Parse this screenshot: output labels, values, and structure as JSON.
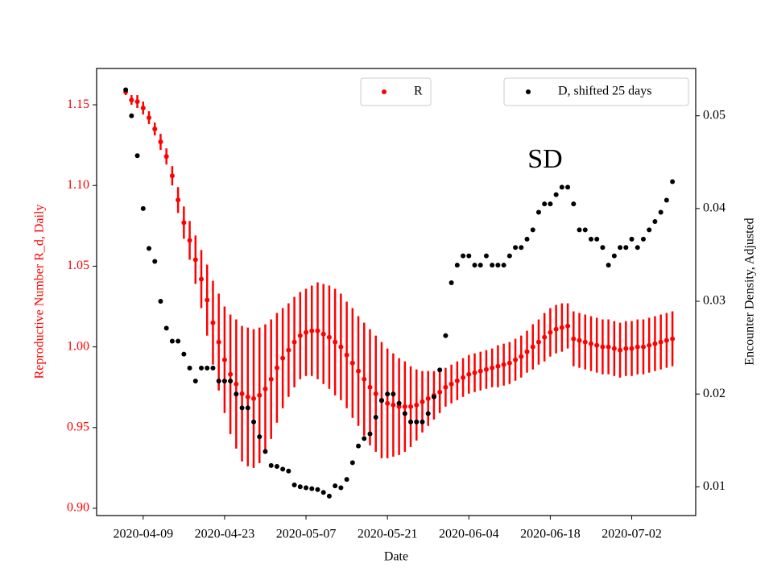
{
  "chart_data": {
    "type": "scatter",
    "xlabel": "Date",
    "ylabel": "Reproductive Number R_d, Daily",
    "y2label": "Encounter Density, Adjusted",
    "annotation": "SD",
    "x": [
      "2020-04-06",
      "2020-04-07",
      "2020-04-08",
      "2020-04-09",
      "2020-04-10",
      "2020-04-11",
      "2020-04-12",
      "2020-04-13",
      "2020-04-14",
      "2020-04-15",
      "2020-04-16",
      "2020-04-17",
      "2020-04-18",
      "2020-04-19",
      "2020-04-20",
      "2020-04-21",
      "2020-04-22",
      "2020-04-23",
      "2020-04-24",
      "2020-04-25",
      "2020-04-26",
      "2020-04-27",
      "2020-04-28",
      "2020-04-29",
      "2020-04-30",
      "2020-05-01",
      "2020-05-02",
      "2020-05-03",
      "2020-05-04",
      "2020-05-05",
      "2020-05-06",
      "2020-05-07",
      "2020-05-08",
      "2020-05-09",
      "2020-05-10",
      "2020-05-11",
      "2020-05-12",
      "2020-05-13",
      "2020-05-14",
      "2020-05-15",
      "2020-05-16",
      "2020-05-17",
      "2020-05-18",
      "2020-05-19",
      "2020-05-20",
      "2020-05-21",
      "2020-05-22",
      "2020-05-23",
      "2020-05-24",
      "2020-05-25",
      "2020-05-26",
      "2020-05-27",
      "2020-05-28",
      "2020-05-29",
      "2020-05-30",
      "2020-05-31",
      "2020-06-01",
      "2020-06-02",
      "2020-06-03",
      "2020-06-04",
      "2020-06-05",
      "2020-06-06",
      "2020-06-07",
      "2020-06-08",
      "2020-06-09",
      "2020-06-10",
      "2020-06-11",
      "2020-06-12",
      "2020-06-13",
      "2020-06-14",
      "2020-06-15",
      "2020-06-16",
      "2020-06-17",
      "2020-06-18",
      "2020-06-19",
      "2020-06-20",
      "2020-06-21",
      "2020-06-22",
      "2020-06-23",
      "2020-06-24",
      "2020-06-25",
      "2020-06-26",
      "2020-06-27",
      "2020-06-28",
      "2020-06-29",
      "2020-06-30",
      "2020-07-01",
      "2020-07-02",
      "2020-07-03",
      "2020-07-04",
      "2020-07-05",
      "2020-07-06",
      "2020-07-07",
      "2020-07-08",
      "2020-07-09"
    ],
    "series": [
      {
        "name": "R",
        "color": "#ff0000",
        "axis": "y",
        "values": [
          1.158,
          1.153,
          1.152,
          1.148,
          1.142,
          1.135,
          1.127,
          1.118,
          1.106,
          1.091,
          1.077,
          1.066,
          1.054,
          1.042,
          1.029,
          1.015,
          1.003,
          0.992,
          0.983,
          0.977,
          0.971,
          0.969,
          0.968,
          0.97,
          0.974,
          0.98,
          0.987,
          0.993,
          0.998,
          1.003,
          1.007,
          1.009,
          1.01,
          1.01,
          1.008,
          1.006,
          1.003,
          1.0,
          0.995,
          0.99,
          0.985,
          0.98,
          0.975,
          0.971,
          0.967,
          0.965,
          0.964,
          0.963,
          0.963,
          0.963,
          0.964,
          0.966,
          0.968,
          0.97,
          0.972,
          0.975,
          0.977,
          0.979,
          0.981,
          0.983,
          0.984,
          0.985,
          0.986,
          0.987,
          0.988,
          0.989,
          0.99,
          0.992,
          0.994,
          0.997,
          1.0,
          1.003,
          1.006,
          1.009,
          1.011,
          1.012,
          1.013,
          1.005,
          1.004,
          1.003,
          1.002,
          1.001,
          1.0,
          1.0,
          0.999,
          0.998,
          0.999,
          0.999,
          1.0,
          1.0,
          1.001,
          1.002,
          1.003,
          1.004,
          1.005
        ],
        "errors": [
          0.002,
          0.003,
          0.004,
          0.004,
          0.004,
          0.004,
          0.005,
          0.005,
          0.006,
          0.008,
          0.01,
          0.012,
          0.015,
          0.018,
          0.022,
          0.026,
          0.03,
          0.033,
          0.037,
          0.04,
          0.042,
          0.043,
          0.043,
          0.042,
          0.04,
          0.037,
          0.034,
          0.031,
          0.029,
          0.028,
          0.027,
          0.027,
          0.028,
          0.03,
          0.031,
          0.032,
          0.033,
          0.033,
          0.033,
          0.034,
          0.034,
          0.035,
          0.036,
          0.036,
          0.036,
          0.034,
          0.032,
          0.03,
          0.028,
          0.025,
          0.022,
          0.019,
          0.017,
          0.015,
          0.013,
          0.012,
          0.012,
          0.012,
          0.012,
          0.012,
          0.012,
          0.012,
          0.012,
          0.012,
          0.013,
          0.013,
          0.013,
          0.013,
          0.013,
          0.013,
          0.014,
          0.014,
          0.015,
          0.015,
          0.015,
          0.015,
          0.014,
          0.017,
          0.017,
          0.017,
          0.017,
          0.017,
          0.017,
          0.017,
          0.017,
          0.017,
          0.017,
          0.017,
          0.017,
          0.017,
          0.017,
          0.017,
          0.017,
          0.017,
          0.017
        ]
      },
      {
        "name": "D, shifted 25 days",
        "color": "#000000",
        "axis": "y2",
        "values": [
          0.0528,
          0.05,
          0.0457,
          0.04,
          0.0357,
          0.0343,
          0.03,
          0.0271,
          0.0257,
          0.0257,
          0.0243,
          0.0228,
          0.0214,
          0.0228,
          0.0228,
          0.0228,
          0.0214,
          0.0214,
          0.0214,
          0.02,
          0.0185,
          0.0185,
          0.017,
          0.0154,
          0.0138,
          0.0123,
          0.0122,
          0.0119,
          0.0117,
          0.0102,
          0.01,
          0.0099,
          0.0098,
          0.0097,
          0.0094,
          0.009,
          0.0101,
          0.0099,
          0.0108,
          0.0126,
          0.0144,
          0.0152,
          0.0157,
          0.0175,
          0.0193,
          0.02,
          0.02,
          0.019,
          0.0179,
          0.017,
          0.017,
          0.017,
          0.0179,
          0.0197,
          0.0226,
          0.0263,
          0.032,
          0.0339,
          0.0349,
          0.0349,
          0.0339,
          0.0339,
          0.0349,
          0.0339,
          0.0339,
          0.0339,
          0.0349,
          0.0358,
          0.0358,
          0.0367,
          0.0377,
          0.0396,
          0.0405,
          0.0405,
          0.0415,
          0.0423,
          0.0423,
          0.0405,
          0.0377,
          0.0377,
          0.0367,
          0.0367,
          0.0358,
          0.0339,
          0.0349,
          0.0358,
          0.0358,
          0.0367,
          0.0358,
          0.0367,
          0.0377,
          0.0386,
          0.0396,
          0.0409,
          0.0429
        ]
      }
    ],
    "xlim": [
      "2020-04-01",
      "2020-07-13"
    ],
    "xticks": [
      "2020-04-09",
      "2020-04-23",
      "2020-05-07",
      "2020-05-21",
      "2020-06-04",
      "2020-06-18",
      "2020-07-02"
    ],
    "ylim": [
      0.8955,
      1.1725
    ],
    "yticks": [
      {
        "value": 0.9,
        "label": "0.90"
      },
      0.95,
      {
        "value": 1.0,
        "label": "1.00"
      },
      1.05,
      {
        "value": 1.1,
        "label": "1.10"
      },
      1.15
    ],
    "y2lim": [
      0.0069,
      0.0551
    ],
    "y2ticks": [
      0.01,
      0.02,
      0.03,
      0.04,
      0.05
    ],
    "ytick_color": "#ff0000",
    "grid": false
  }
}
